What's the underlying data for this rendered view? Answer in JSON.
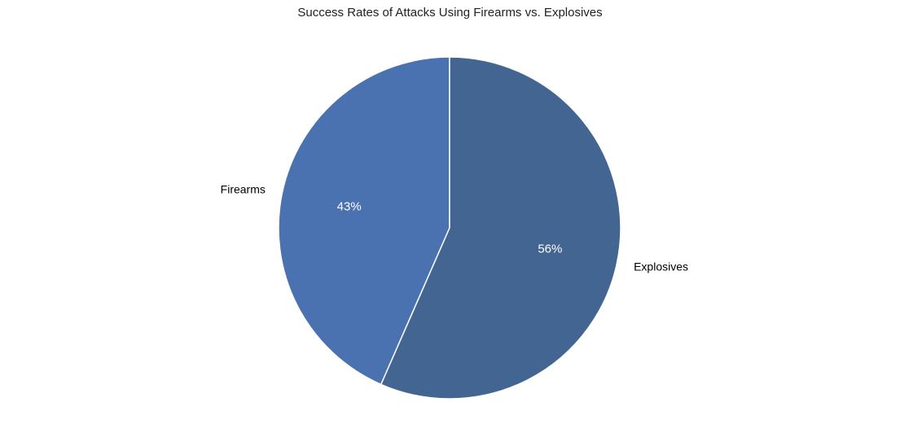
{
  "chart_data": {
    "type": "pie",
    "title": "Success Rates of Attacks Using Firearms vs. Explosives",
    "categories": [
      "Firearms",
      "Explosives"
    ],
    "values": [
      43,
      56
    ],
    "value_labels": [
      "43%",
      "56%"
    ],
    "colors": [
      "#4a72b0",
      "#426592"
    ],
    "start_angle_deg": 90,
    "direction": "counterclockwise",
    "legend": "none"
  }
}
